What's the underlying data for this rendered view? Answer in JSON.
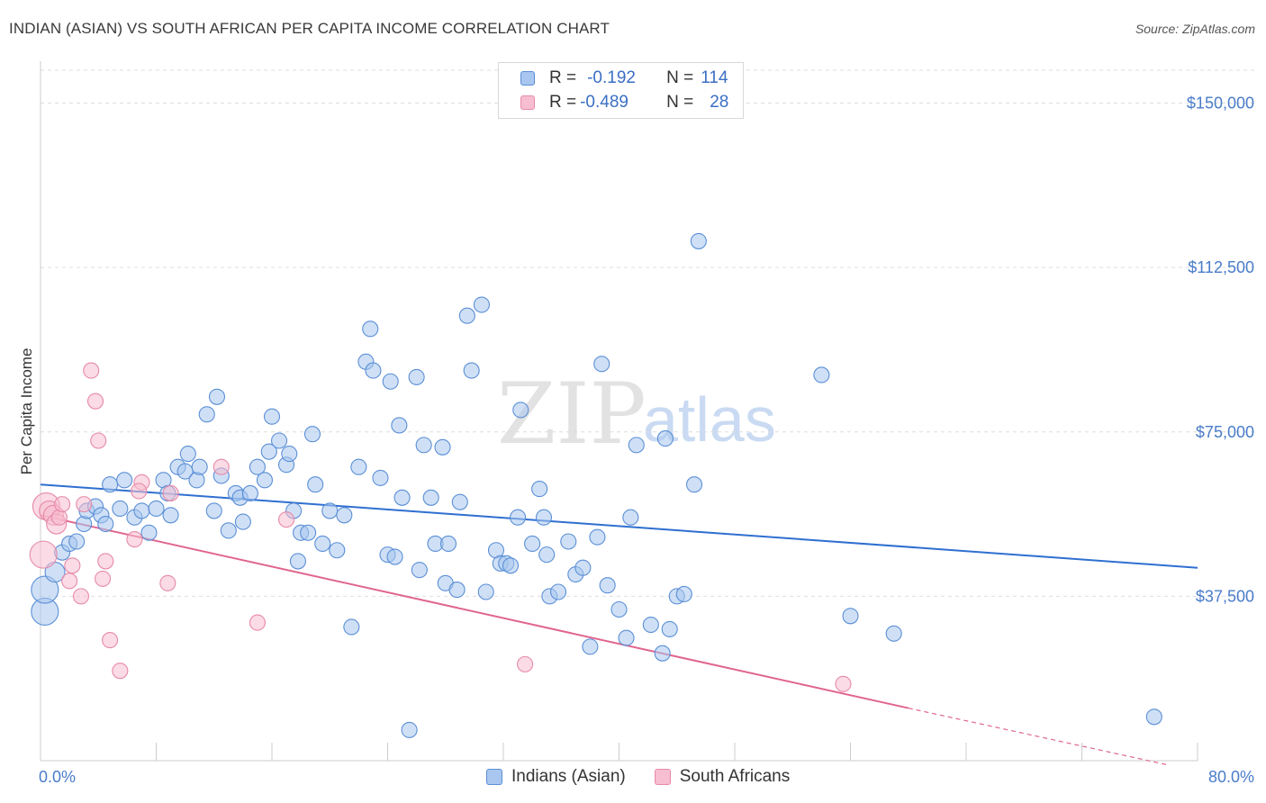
{
  "header": {
    "title": "INDIAN (ASIAN) VS SOUTH AFRICAN PER CAPITA INCOME CORRELATION CHART",
    "source": "Source: ZipAtlas.com"
  },
  "watermark": {
    "zip": "ZIP",
    "atlas": "atlas"
  },
  "legend": {
    "r_label": "R =",
    "n_label": "N =",
    "rows": [
      {
        "r": "-0.192",
        "n": "114",
        "color": "#a8c6ef",
        "stroke": "#5b8fd6"
      },
      {
        "r": "-0.489",
        "n": "28",
        "color": "#f7bdd0",
        "stroke": "#e68aa8"
      }
    ]
  },
  "chart_data": {
    "type": "scatter",
    "title": "INDIAN (ASIAN) VS SOUTH AFRICAN PER CAPITA INCOME CORRELATION CHART",
    "xlabel": "",
    "ylabel": "Per Capita Income",
    "xlim": [
      0,
      80
    ],
    "ylim": [
      0,
      157500
    ],
    "x_tick_labels": [
      "0.0%",
      "80.0%"
    ],
    "y_ticks": [
      37500,
      75000,
      112500,
      150000
    ],
    "y_tick_labels": [
      "$37,500",
      "$75,000",
      "$112,500",
      "$150,000"
    ],
    "grid": "horizontal dashed",
    "legend_position": "top-center",
    "series": [
      {
        "name": "Indians (Asian)",
        "color": "#a8c6ef",
        "stroke": "#5b8fd6",
        "trend": {
          "x": [
            0,
            80
          ],
          "y": [
            63000,
            44000
          ],
          "color": "#2f6fd0"
        },
        "points": [
          [
            0.3,
            34000
          ],
          [
            0.3,
            39000
          ],
          [
            1.0,
            43000
          ],
          [
            1.5,
            47500
          ],
          [
            2.0,
            49500
          ],
          [
            2.5,
            50000
          ],
          [
            3.0,
            54000
          ],
          [
            3.2,
            57000
          ],
          [
            3.8,
            58000
          ],
          [
            4.2,
            56000
          ],
          [
            4.5,
            54000
          ],
          [
            4.8,
            63000
          ],
          [
            5.5,
            57500
          ],
          [
            5.8,
            64000
          ],
          [
            6.5,
            55500
          ],
          [
            7.0,
            57000
          ],
          [
            7.5,
            52000
          ],
          [
            8.0,
            57500
          ],
          [
            8.5,
            64000
          ],
          [
            8.8,
            61000
          ],
          [
            9.0,
            56000
          ],
          [
            9.5,
            67000
          ],
          [
            10.0,
            66000
          ],
          [
            10.2,
            70000
          ],
          [
            10.8,
            64000
          ],
          [
            11.0,
            67000
          ],
          [
            11.5,
            79000
          ],
          [
            12.0,
            57000
          ],
          [
            12.2,
            83000
          ],
          [
            12.5,
            65000
          ],
          [
            13.0,
            52500
          ],
          [
            13.5,
            61000
          ],
          [
            13.8,
            60000
          ],
          [
            14.0,
            54500
          ],
          [
            14.5,
            61000
          ],
          [
            15.0,
            67000
          ],
          [
            15.5,
            64000
          ],
          [
            15.8,
            70500
          ],
          [
            16.0,
            78500
          ],
          [
            16.5,
            73000
          ],
          [
            17.0,
            67500
          ],
          [
            17.2,
            70000
          ],
          [
            17.5,
            57000
          ],
          [
            17.8,
            45500
          ],
          [
            18.0,
            52000
          ],
          [
            18.5,
            52000
          ],
          [
            18.8,
            74500
          ],
          [
            19.0,
            63000
          ],
          [
            19.5,
            49500
          ],
          [
            20.0,
            57000
          ],
          [
            20.5,
            48000
          ],
          [
            21.0,
            56000
          ],
          [
            21.5,
            30500
          ],
          [
            22.0,
            67000
          ],
          [
            22.5,
            91000
          ],
          [
            22.8,
            98500
          ],
          [
            23.0,
            89000
          ],
          [
            23.5,
            64500
          ],
          [
            24.0,
            47000
          ],
          [
            24.2,
            86500
          ],
          [
            24.5,
            46500
          ],
          [
            24.8,
            76500
          ],
          [
            25.0,
            60000
          ],
          [
            25.5,
            7000
          ],
          [
            26.0,
            87500
          ],
          [
            26.2,
            43500
          ],
          [
            26.5,
            72000
          ],
          [
            27.0,
            60000
          ],
          [
            27.3,
            49500
          ],
          [
            27.8,
            71500
          ],
          [
            28.0,
            40500
          ],
          [
            28.2,
            49500
          ],
          [
            28.8,
            39000
          ],
          [
            29.0,
            59000
          ],
          [
            29.5,
            101500
          ],
          [
            29.8,
            89000
          ],
          [
            30.5,
            104000
          ],
          [
            30.8,
            38500
          ],
          [
            31.5,
            48000
          ],
          [
            31.8,
            45000
          ],
          [
            32.2,
            45000
          ],
          [
            32.5,
            44500
          ],
          [
            33.0,
            55500
          ],
          [
            33.2,
            80000
          ],
          [
            34.0,
            49500
          ],
          [
            34.5,
            62000
          ],
          [
            34.8,
            55500
          ],
          [
            35.0,
            47000
          ],
          [
            35.2,
            37500
          ],
          [
            35.8,
            38500
          ],
          [
            36.5,
            50000
          ],
          [
            37.0,
            42500
          ],
          [
            37.5,
            44000
          ],
          [
            38.0,
            26000
          ],
          [
            38.5,
            51000
          ],
          [
            38.8,
            90500
          ],
          [
            39.2,
            40000
          ],
          [
            40.0,
            34500
          ],
          [
            40.5,
            28000
          ],
          [
            40.8,
            55500
          ],
          [
            41.2,
            72000
          ],
          [
            42.2,
            31000
          ],
          [
            43.0,
            24500
          ],
          [
            43.2,
            73500
          ],
          [
            43.5,
            30000
          ],
          [
            44.0,
            37500
          ],
          [
            44.5,
            38000
          ],
          [
            45.2,
            63000
          ],
          [
            45.5,
            118500
          ],
          [
            54.0,
            88000
          ],
          [
            56.0,
            33000
          ],
          [
            59.0,
            29000
          ],
          [
            77.0,
            10000
          ]
        ]
      },
      {
        "name": "South Africans",
        "color": "#f7bdd0",
        "stroke": "#e68aa8",
        "trend": {
          "x": [
            0,
            60
          ],
          "y": [
            56000,
            12000
          ],
          "dashed_to": [
            78,
            -1000
          ],
          "color": "#e0668f"
        },
        "points": [
          [
            0.2,
            47000
          ],
          [
            0.4,
            58000
          ],
          [
            0.6,
            57000
          ],
          [
            0.9,
            56000
          ],
          [
            1.1,
            54000
          ],
          [
            1.3,
            55500
          ],
          [
            1.5,
            58500
          ],
          [
            2.0,
            41000
          ],
          [
            2.2,
            44500
          ],
          [
            2.8,
            37500
          ],
          [
            3.0,
            58500
          ],
          [
            3.5,
            89000
          ],
          [
            3.8,
            82000
          ],
          [
            4.0,
            73000
          ],
          [
            4.3,
            41500
          ],
          [
            4.5,
            45500
          ],
          [
            4.8,
            27500
          ],
          [
            5.5,
            20500
          ],
          [
            6.5,
            50500
          ],
          [
            7.0,
            63500
          ],
          [
            8.8,
            40500
          ],
          [
            9.0,
            61000
          ],
          [
            12.5,
            67000
          ],
          [
            15.0,
            31500
          ],
          [
            17.0,
            55000
          ],
          [
            33.5,
            22000
          ],
          [
            55.5,
            17500
          ],
          [
            6.8,
            61500
          ]
        ]
      }
    ]
  },
  "bottom_legend": [
    {
      "label": "Indians (Asian)",
      "color": "#a8c6ef",
      "stroke": "#5b8fd6"
    },
    {
      "label": "South Africans",
      "color": "#f7bdd0",
      "stroke": "#e68aa8"
    }
  ]
}
